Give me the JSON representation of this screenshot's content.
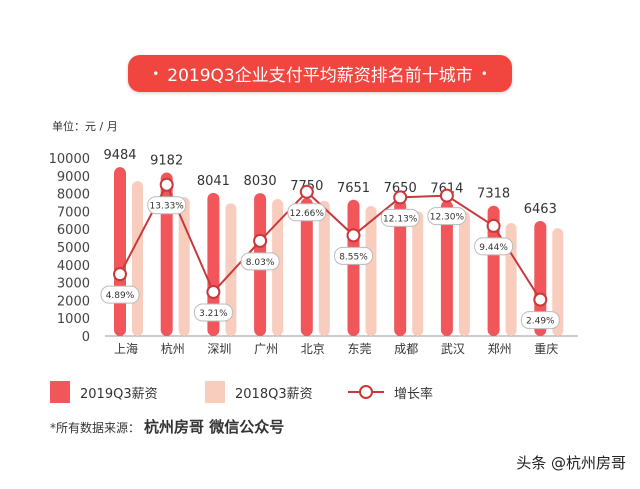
{
  "chart_data": {
    "type": "bar",
    "title": "2019Q3企业支付平均薪资排名前十城市",
    "unit_label": "单位：元 / 月",
    "categories": [
      "上海",
      "杭州",
      "深圳",
      "广州",
      "北京",
      "东莞",
      "成都",
      "武汉",
      "郑州",
      "重庆"
    ],
    "ylim": [
      0,
      10000
    ],
    "yticks": [
      0,
      1000,
      2000,
      3000,
      4000,
      5000,
      6000,
      7000,
      8000,
      9000,
      10000
    ],
    "grid": false,
    "legend_position": "bottom-left",
    "series": [
      {
        "name": "2019Q3薪资",
        "type": "bar",
        "color": "#f0565a",
        "values": [
          9484,
          9182,
          8041,
          8030,
          7750,
          7651,
          7650,
          7614,
          7318,
          6463
        ],
        "labels": [
          "9484",
          "9182",
          "8041",
          "8030",
          "7750",
          "7651",
          "7650",
          "7614",
          "7318",
          "6463"
        ]
      },
      {
        "name": "2018Q3薪资",
        "type": "bar",
        "color": "#f9cdbd",
        "values": [
          8700,
          7800,
          7450,
          7700,
          7600,
          7300,
          7000,
          7000,
          6350,
          6050
        ]
      },
      {
        "name": "增长率",
        "type": "line",
        "unit": "%",
        "color": "#c9383a",
        "values": [
          4.89,
          13.33,
          3.21,
          8.03,
          12.66,
          8.55,
          12.13,
          12.3,
          9.44,
          2.49
        ],
        "labels": [
          "4.89%",
          "13.33%",
          "3.21%",
          "8.03%",
          "12.66%",
          "8.55%",
          "12.13%",
          "12.30%",
          "9.44%",
          "2.49%"
        ]
      }
    ]
  },
  "legend": {
    "s2019": "2019Q3薪资",
    "s2018": "2018Q3薪资",
    "growth": "增长率"
  },
  "source": {
    "prefix": "*所有数据来源：",
    "name": "杭州房哥  微信公众号"
  },
  "watermark": "头条 @杭州房哥"
}
